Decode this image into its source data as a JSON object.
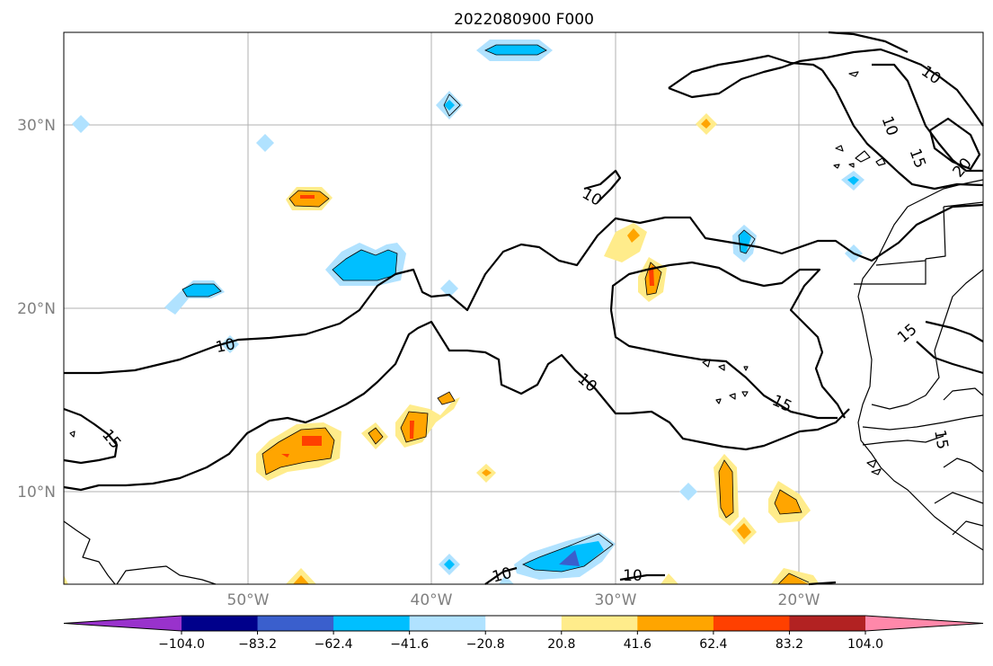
{
  "title": "2022080900 F000",
  "lat_labels": [
    "30°N",
    "20°N",
    "10°N"
  ],
  "lon_labels": [
    "50°W",
    "40°W",
    "30°W",
    "20°W"
  ],
  "colorbar": {
    "ticks": [
      "−104.0",
      "−83.2",
      "−62.4",
      "−41.6",
      "−20.8",
      "20.8",
      "41.6",
      "62.4",
      "83.2",
      "104.0"
    ],
    "colors": [
      "#9932cc",
      "#00008b",
      "#3a5fcd",
      "#00bfff",
      "#b0e2ff",
      "#ffffff",
      "#ffec8b",
      "#ffa500",
      "#ff4000",
      "#b22222",
      "#ff88aa"
    ]
  },
  "contour_labels": [
    "10",
    "10",
    "15",
    "10",
    "15",
    "10",
    "10",
    "15",
    "20",
    "15",
    "15",
    "10",
    "10"
  ],
  "colors": {
    "light_yellow": "#ffec8b",
    "orange": "#ffa500",
    "red_orange": "#ff4000",
    "light_blue": "#b0e2ff",
    "deep_sky_blue": "#00bfff",
    "royal_blue": "#3a5fcd"
  }
}
